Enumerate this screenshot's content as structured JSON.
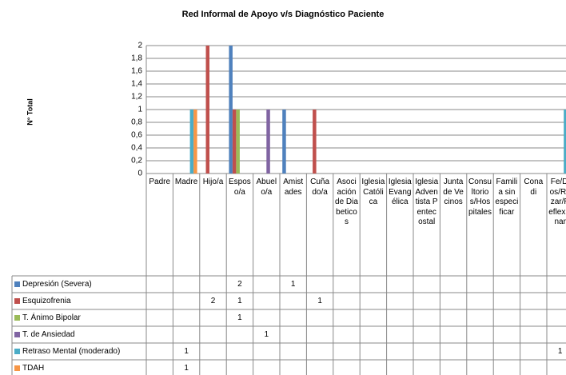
{
  "chart_data": {
    "type": "bar",
    "title": "Red Informal de Apoyo v/s Diagnóstico Paciente",
    "y_label": "N° Total",
    "categories": [
      "Padre",
      "Madre",
      "Hijo/a",
      "Esposo/a",
      "Abuelo/a",
      "Amistades",
      "Cuñado/a",
      "Asociación de Diabeticos",
      "Iglesia Católica",
      "Iglesia Evangélica",
      "Iglesia Adventista Pentecostal",
      "Junta de Vecinos",
      "Consultorios/Hospitales",
      "Familia sin especificar",
      "Conadi",
      "Fe/Dios/Rezar/Reflexionar"
    ],
    "series": [
      {
        "name": "Depresión (Severa)",
        "color": "#4f81bd",
        "values": [
          null,
          null,
          null,
          2,
          null,
          1,
          null,
          null,
          null,
          null,
          null,
          null,
          null,
          null,
          null,
          null
        ]
      },
      {
        "name": "Esquizofrenia",
        "color": "#c0504d",
        "values": [
          null,
          null,
          2,
          1,
          null,
          null,
          1,
          null,
          null,
          null,
          null,
          null,
          null,
          null,
          null,
          null
        ]
      },
      {
        "name": "T. Ánimo Bipolar",
        "color": "#9bbb59",
        "values": [
          null,
          null,
          null,
          1,
          null,
          null,
          null,
          null,
          null,
          null,
          null,
          null,
          null,
          null,
          null,
          null
        ]
      },
      {
        "name": "T. de Ansiedad",
        "color": "#8064a2",
        "values": [
          null,
          null,
          null,
          null,
          1,
          null,
          null,
          null,
          null,
          null,
          null,
          null,
          null,
          null,
          null,
          null
        ]
      },
      {
        "name": "Retraso Mental (moderado)",
        "color": "#4bacc6",
        "values": [
          null,
          1,
          null,
          null,
          null,
          null,
          null,
          null,
          null,
          null,
          null,
          null,
          null,
          null,
          null,
          1
        ]
      },
      {
        "name": "TDAH",
        "color": "#f79646",
        "values": [
          null,
          1,
          null,
          null,
          null,
          null,
          null,
          null,
          null,
          null,
          null,
          null,
          null,
          null,
          null,
          null
        ]
      }
    ],
    "ylim": [
      0,
      2
    ],
    "yticks": [
      0,
      {
        "value": 0.2,
        "label": "0,2"
      },
      {
        "value": 0.4,
        "label": "0,4"
      },
      {
        "value": 0.6,
        "label": "0,6"
      },
      {
        "value": 0.8,
        "label": "0,8"
      },
      1,
      {
        "value": 1.2,
        "label": "1,2"
      },
      {
        "value": 1.4,
        "label": "1,4"
      },
      {
        "value": 1.6,
        "label": "1,6"
      },
      {
        "value": 1.8,
        "label": "1,8"
      },
      2
    ],
    "grid": true,
    "legend": "bottom"
  }
}
